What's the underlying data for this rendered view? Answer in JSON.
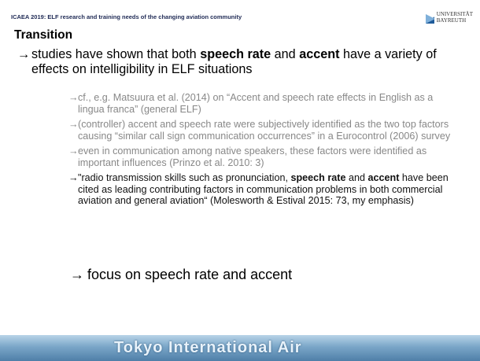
{
  "header": {
    "title": "ICAEA 2019: ELF research and training needs of the changing aviation community",
    "logo": [
      "UNIVERSITÄT",
      "BAYREUTH"
    ]
  },
  "slide": {
    "title": "Transition",
    "main_bullet": [
      {
        "text": "studies have shown that both "
      },
      {
        "text": "speech rate",
        "bold": true
      },
      {
        "text": " and "
      },
      {
        "text": "accent",
        "bold": true
      },
      {
        "text": " have a variety of effects on intelligibility in ELF situations"
      }
    ],
    "sub_bullets": [
      [
        {
          "text": "cf., e.g. Matsuura et al. (2014) on “Accent and speech rate effects in English as a lingua franca” (general ELF)"
        }
      ],
      [
        {
          "text": "(controller) accent and speech rate were subjectively identified as the two top factors causing “similar call sign communication occurrences” in a Eurocontrol (2006) survey"
        }
      ],
      [
        {
          "text": "even in communication among native speakers, these factors were identified as important influences (Prinzo et al. 2010: 3)"
        }
      ],
      [
        {
          "text": "\"radio transmission skills such as pronunciation, "
        },
        {
          "text": "speech rate",
          "bold": true
        },
        {
          "text": " and "
        },
        {
          "text": "accent",
          "bold": true
        },
        {
          "text": " have been cited as leading contributing factors in communication problems in both commercial aviation and general aviation“ (Molesworth & Estival 2015: 73, my emphasis)"
        }
      ]
    ],
    "conclusion": "focus on speech rate and accent"
  },
  "banner": {
    "text": "Tokyo International Air"
  }
}
